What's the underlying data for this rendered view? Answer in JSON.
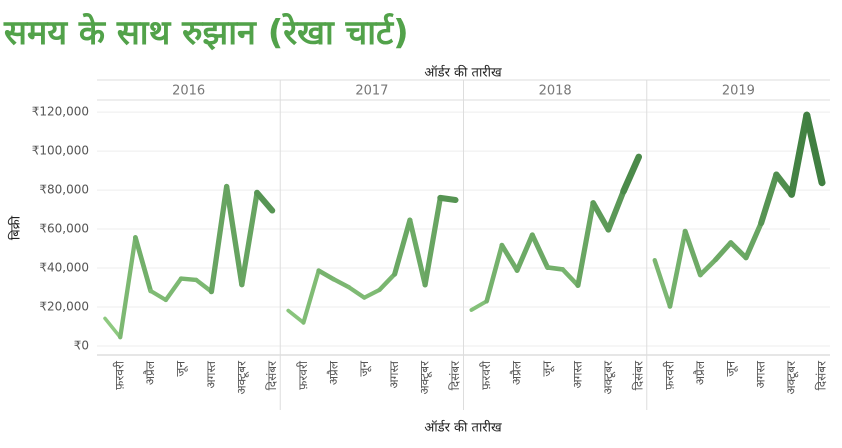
{
  "chart_data": {
    "type": "line",
    "title": "समय के साथ रुझान (रेखा चार्ट)",
    "x_label_top": "ऑर्डर की तारीख",
    "x_label": "ऑर्डर की तारीख",
    "y_label": "बिक्री",
    "categories": [
      null,
      "फ़रवरी",
      null,
      "अप्रैल",
      null,
      "जून",
      null,
      "अगस्त",
      null,
      "अक्टूबर",
      null,
      "दिसंबर"
    ],
    "ylim": [
      -4600,
      126200
    ],
    "yticks": [
      {
        "value": 0,
        "label": "₹0"
      },
      {
        "value": 20000,
        "label": "₹20,000"
      },
      {
        "value": 40000,
        "label": "₹40,000"
      },
      {
        "value": 60000,
        "label": "₹60,000"
      },
      {
        "value": 80000,
        "label": "₹80,000"
      },
      {
        "value": 100000,
        "label": "₹100,000"
      },
      {
        "value": 120000,
        "label": "₹120,000"
      }
    ],
    "grid": true,
    "color_range": [
      "#9ad48a",
      "#2b6b30"
    ],
    "series": [
      {
        "name": "2016",
        "values": [
          14200,
          4500,
          55700,
          28300,
          23600,
          34600,
          33900,
          27900,
          81800,
          31500,
          78600,
          69500
        ]
      },
      {
        "name": "2017",
        "values": [
          18200,
          12000,
          38700,
          34200,
          30100,
          24800,
          28800,
          36900,
          64600,
          31400,
          76000,
          74900
        ]
      },
      {
        "name": "2018",
        "values": [
          18500,
          23000,
          51700,
          38800,
          57000,
          40300,
          39300,
          31100,
          73400,
          59700,
          79400,
          97000
        ]
      },
      {
        "name": "2019",
        "values": [
          44000,
          20300,
          58900,
          36500,
          44300,
          53000,
          45300,
          63100,
          87900,
          77800,
          118400,
          83800
        ]
      }
    ]
  }
}
